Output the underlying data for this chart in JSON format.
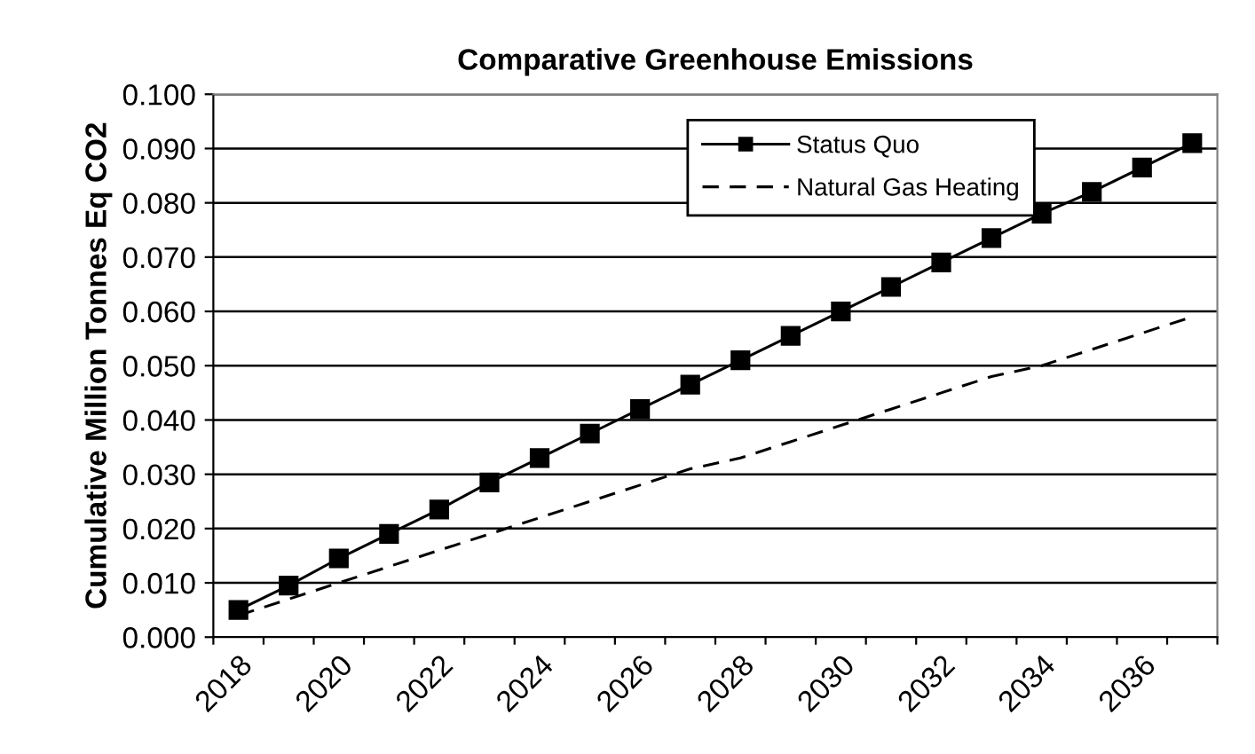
{
  "chart_data": {
    "type": "line",
    "title": "Comparative Greenhouse Emissions",
    "ylabel": "Cumulative Million Tonnes Eq CO2",
    "categories": [
      "2018",
      null,
      "2020",
      null,
      "2022",
      null,
      "2024",
      null,
      "2026",
      null,
      "2028",
      null,
      "2030",
      null,
      "2032",
      null,
      "2034",
      null,
      "2036",
      null
    ],
    "series": [
      {
        "name": "Status Quo",
        "color": "#000000",
        "marker": "square",
        "line_style": "solid",
        "values": [
          0.005,
          0.0095,
          0.0145,
          0.019,
          0.0235,
          0.0285,
          0.033,
          0.0375,
          0.042,
          0.0465,
          0.051,
          0.0555,
          0.06,
          0.0645,
          0.069,
          0.0735,
          0.078,
          0.082,
          0.0865,
          0.091
        ]
      },
      {
        "name": "Natural Gas Heating",
        "color": "#000000",
        "marker": "none",
        "line_style": "dashed",
        "values": [
          0.004,
          0.007,
          0.01,
          0.013,
          0.016,
          0.019,
          0.022,
          0.025,
          0.028,
          0.031,
          0.033,
          0.036,
          0.039,
          0.042,
          0.045,
          0.048,
          0.05,
          0.053,
          0.056,
          0.059
        ]
      }
    ],
    "ylim": [
      0,
      0.1
    ],
    "yticks": [
      {
        "value": 0,
        "label": "0.000"
      },
      {
        "value": 0.01,
        "label": "0.010"
      },
      {
        "value": 0.02,
        "label": "0.020"
      },
      {
        "value": 0.03,
        "label": "0.030"
      },
      {
        "value": 0.04,
        "label": "0.040"
      },
      {
        "value": 0.05,
        "label": "0.050"
      },
      {
        "value": 0.06,
        "label": "0.060"
      },
      {
        "value": 0.07,
        "label": "0.070"
      },
      {
        "value": 0.08,
        "label": "0.080"
      },
      {
        "value": 0.09,
        "label": "0.090"
      },
      {
        "value": 0.1,
        "label": "0.100"
      }
    ],
    "grid": "y",
    "legend": "top right"
  }
}
